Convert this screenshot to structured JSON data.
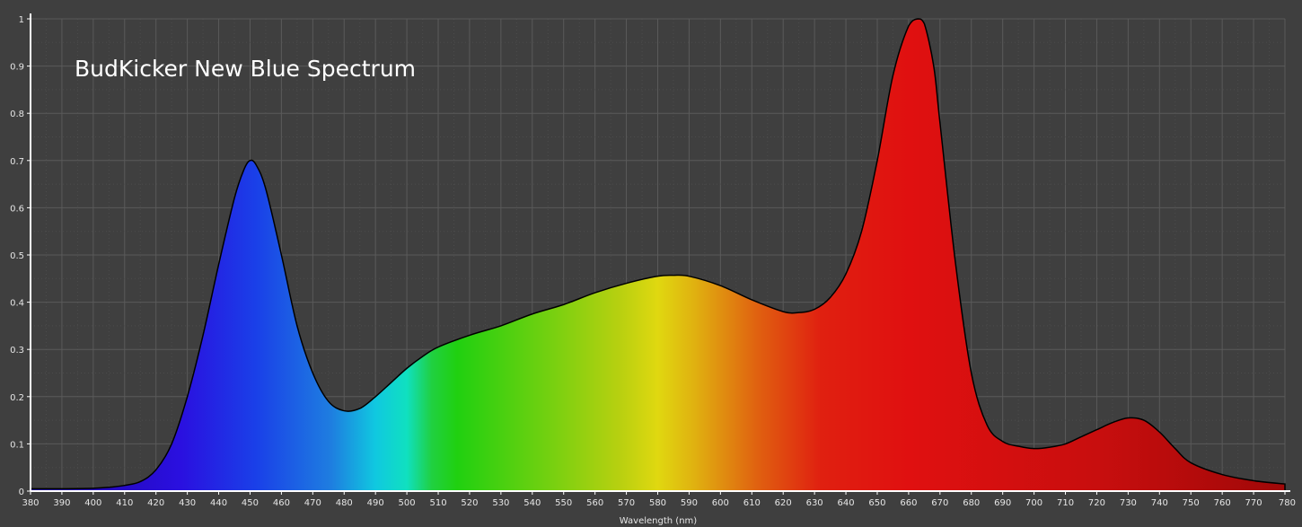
{
  "chart_data": {
    "type": "area",
    "title": "BudKicker New Blue Spectrum",
    "xlabel": "Wavelength (nm)",
    "ylabel": "",
    "xlim": [
      380,
      780
    ],
    "ylim": [
      0,
      1
    ],
    "grid": true,
    "x_ticks": [
      380,
      390,
      400,
      410,
      420,
      430,
      440,
      450,
      460,
      470,
      480,
      490,
      500,
      510,
      520,
      530,
      540,
      550,
      560,
      570,
      580,
      590,
      600,
      610,
      620,
      630,
      640,
      650,
      660,
      670,
      680,
      690,
      700,
      710,
      720,
      730,
      740,
      750,
      760,
      770,
      780
    ],
    "y_ticks": [
      0,
      0.1,
      0.2,
      0.3,
      0.4,
      0.5,
      0.6,
      0.7,
      0.8,
      0.9,
      1
    ],
    "y_tick_labels": [
      "0",
      "0.1",
      "0.2",
      "0.3",
      "0.4",
      "0.5",
      "0.6",
      "0.7",
      "0.8",
      "0.9",
      "1"
    ],
    "series": [
      {
        "x": [
          380,
          390,
          400,
          405,
          410,
          415,
          420,
          425,
          430,
          435,
          440,
          445,
          448,
          450,
          452,
          455,
          460,
          465,
          470,
          475,
          480,
          485,
          490,
          495,
          500,
          505,
          510,
          520,
          530,
          540,
          550,
          560,
          570,
          580,
          585,
          590,
          600,
          610,
          620,
          625,
          630,
          635,
          640,
          645,
          650,
          655,
          660,
          663,
          665,
          668,
          670,
          675,
          680,
          685,
          690,
          695,
          700,
          705,
          710,
          715,
          720,
          725,
          730,
          735,
          740,
          745,
          750,
          760,
          770,
          780
        ],
        "y": [
          0.005,
          0.005,
          0.006,
          0.008,
          0.012,
          0.02,
          0.045,
          0.1,
          0.2,
          0.33,
          0.48,
          0.62,
          0.68,
          0.7,
          0.69,
          0.64,
          0.5,
          0.35,
          0.25,
          0.19,
          0.17,
          0.175,
          0.2,
          0.23,
          0.26,
          0.285,
          0.305,
          0.33,
          0.35,
          0.375,
          0.395,
          0.42,
          0.44,
          0.455,
          0.457,
          0.455,
          0.435,
          0.405,
          0.38,
          0.378,
          0.385,
          0.41,
          0.46,
          0.55,
          0.7,
          0.88,
          0.985,
          1.0,
          0.99,
          0.9,
          0.78,
          0.48,
          0.25,
          0.14,
          0.105,
          0.095,
          0.09,
          0.093,
          0.1,
          0.115,
          0.13,
          0.145,
          0.155,
          0.15,
          0.125,
          0.09,
          0.06,
          0.035,
          0.022,
          0.015
        ]
      }
    ]
  }
}
